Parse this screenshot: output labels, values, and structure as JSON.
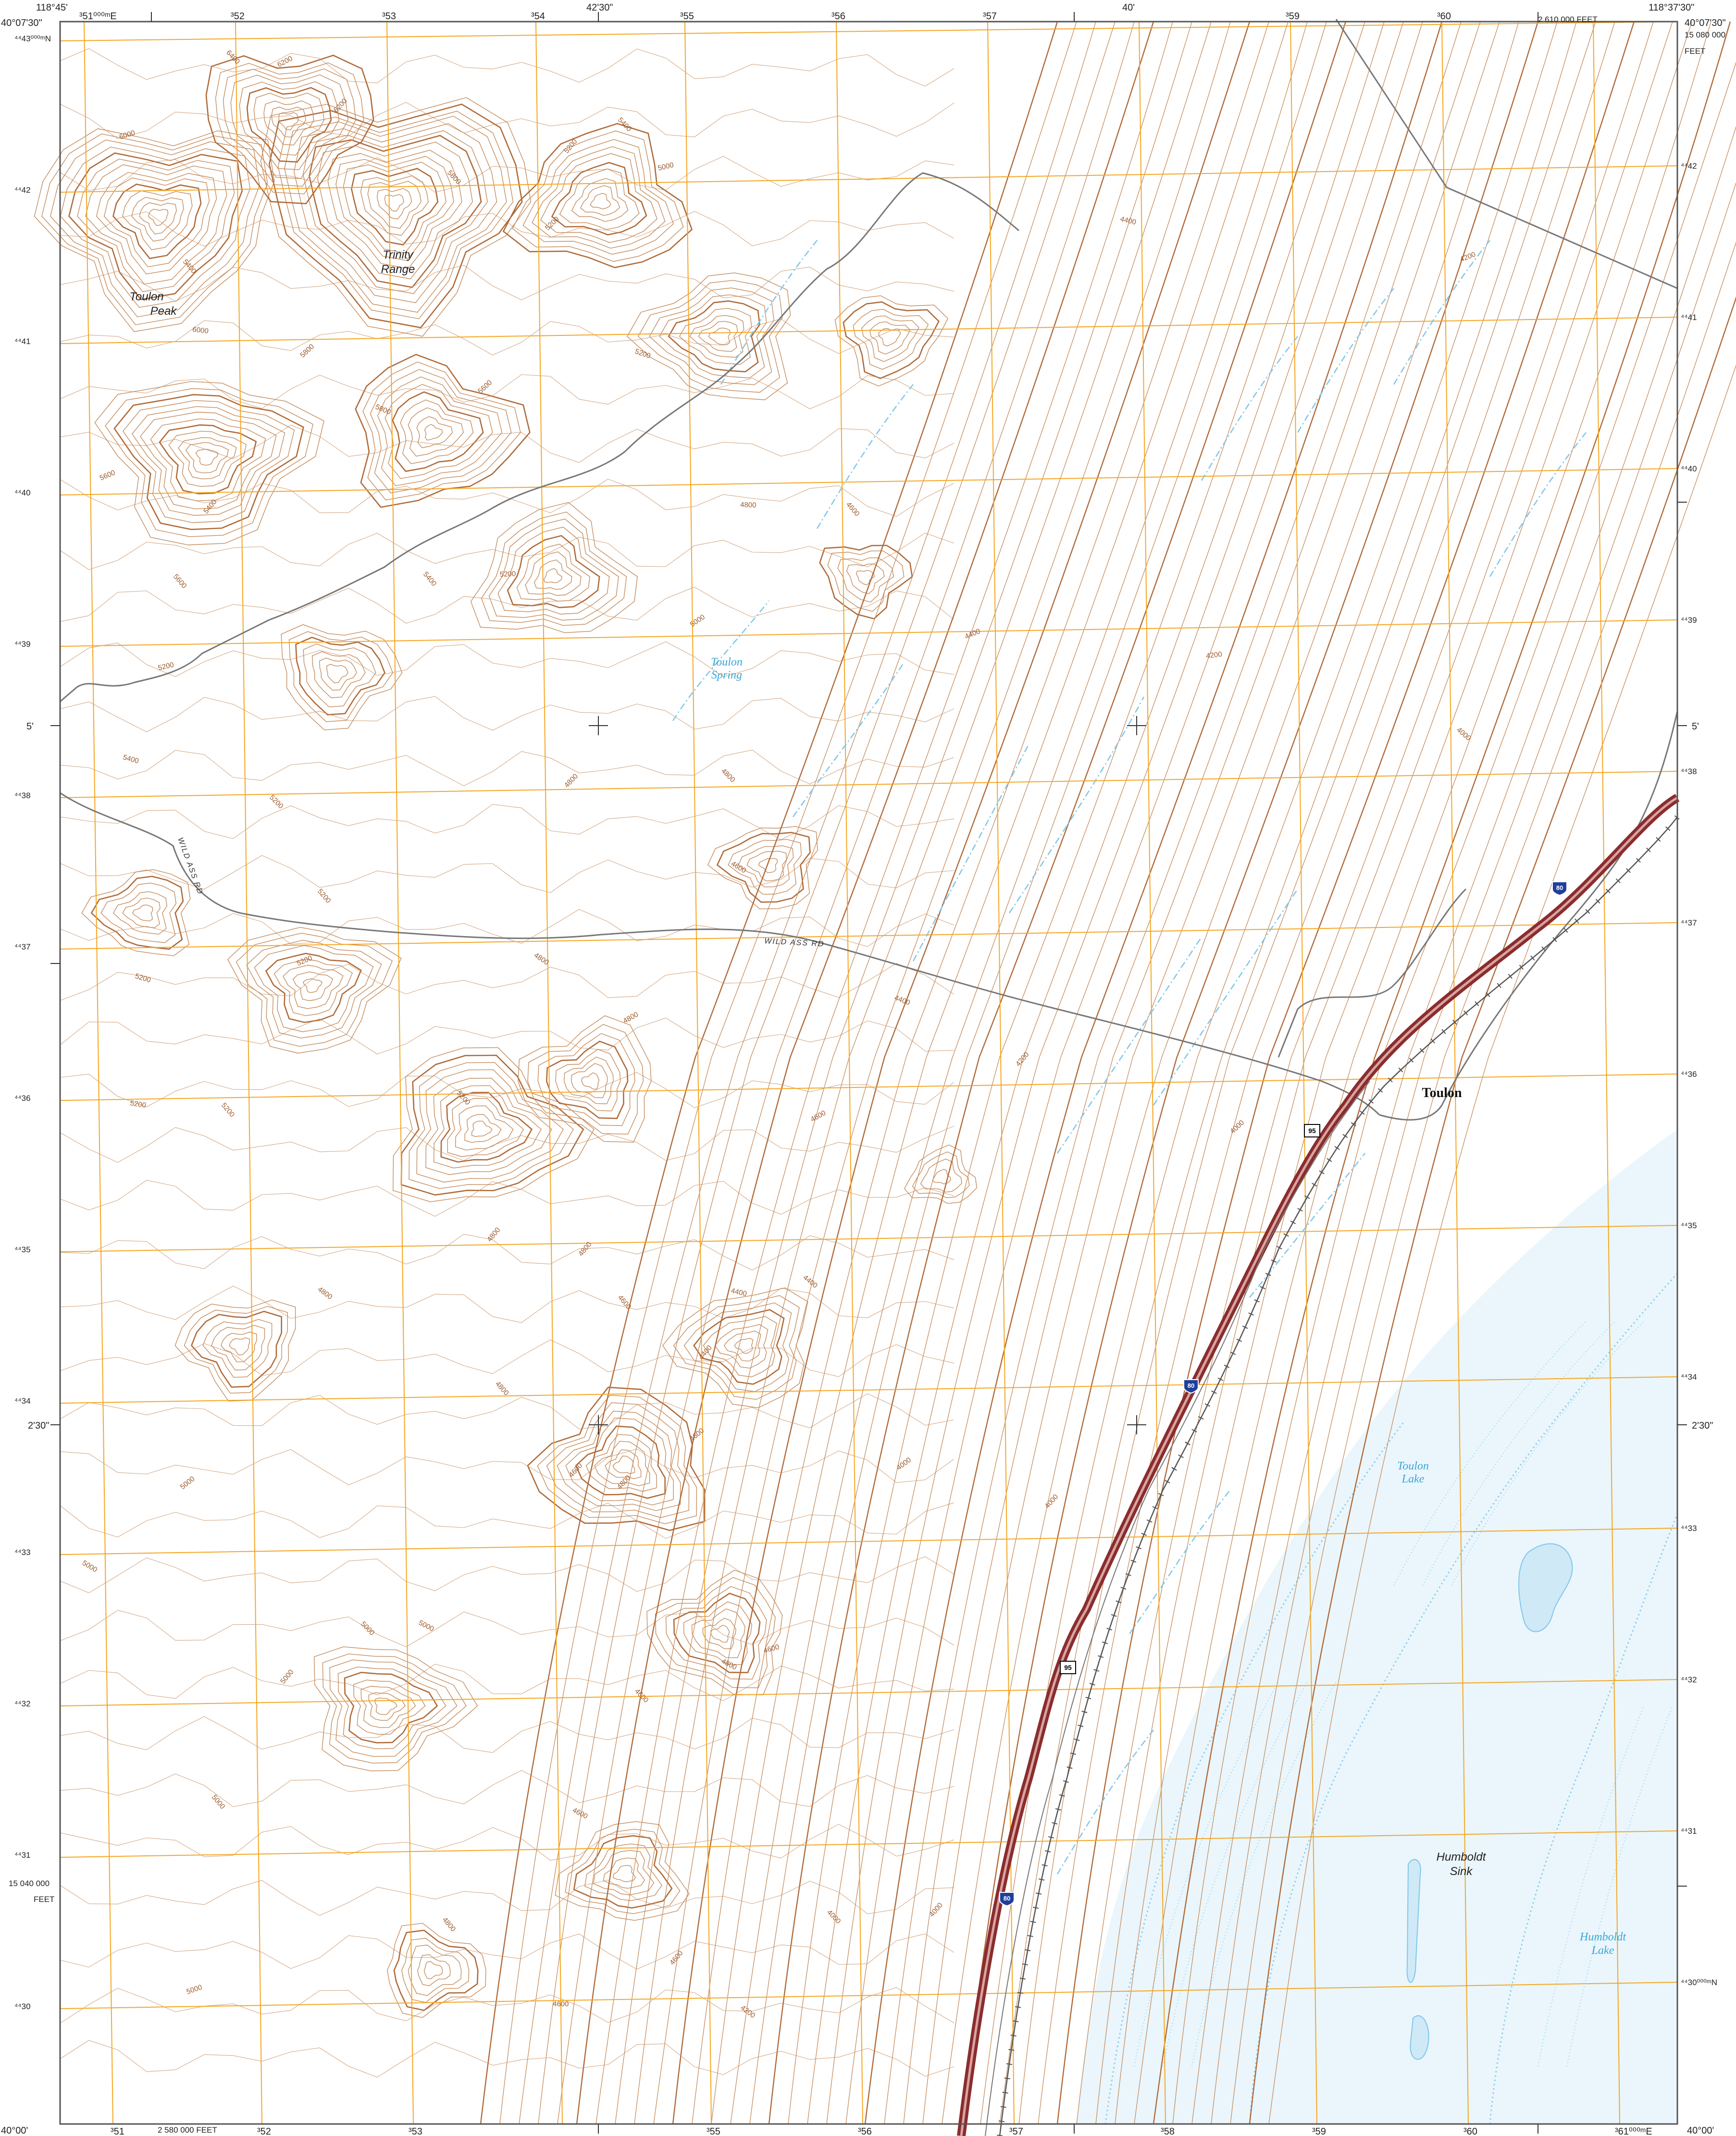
{
  "colors": {
    "contour": "#c48a5a",
    "contour_index": "#b06a38",
    "grid_utm": "#f5a623",
    "water": "#7fc6ea",
    "water_fill": "#e8f5fc",
    "interstate": "#8a2d2d",
    "road": "#777777",
    "railroad": "#555555",
    "frame": "#555555"
  },
  "corners": {
    "top_left_lon": "118°45'",
    "top_left_lat": "40°07'30\"",
    "top_right_lon": "118°37'30\"",
    "top_right_lat": "40°07'30\"",
    "bottom_left_lat": "40°00'",
    "bottom_right_lat": "40°00'",
    "top_feet": "2 610 000 FEET",
    "right_northing": "15 080 000",
    "right_feet": "FEET",
    "left_northing": "15 040 000",
    "left_feet": "FEET",
    "bottom_feet": "2 580 000 FEET",
    "top_mid": "42'30\"",
    "top_40": "40'",
    "left_5": "5'",
    "right_5": "5'",
    "left_230": "2'30\"",
    "right_230": "2'30\""
  },
  "easting_labels": {
    "top": [
      "³51⁰⁰⁰ᵐE",
      "³52",
      "³53",
      "³54",
      "³55",
      "³56",
      "³57",
      "³59",
      "³60"
    ],
    "bottom": [
      "³51",
      "³52",
      "³53",
      "³55",
      "³56",
      "³57",
      "³58",
      "³59",
      "³60",
      "³61⁰⁰⁰ᵐE"
    ]
  },
  "northing_labels": {
    "left": [
      "⁴⁴43⁰⁰⁰ᵐN",
      "⁴⁴42",
      "⁴⁴41",
      "⁴⁴40",
      "⁴⁴39",
      "⁴⁴38",
      "⁴⁴37",
      "⁴⁴36",
      "⁴⁴35",
      "⁴⁴34",
      "⁴⁴33",
      "⁴⁴32",
      "⁴⁴31",
      "⁴⁴30"
    ],
    "right": [
      "⁴⁴42",
      "⁴⁴41",
      "⁴⁴40",
      "⁴⁴39",
      "⁴⁴38",
      "⁴⁴37",
      "⁴⁴36",
      "⁴⁴35",
      "⁴⁴34",
      "⁴⁴33",
      "⁴⁴32",
      "⁴⁴31",
      "⁴⁴30⁰⁰⁰ᵐN"
    ]
  },
  "places": {
    "toulon_peak": [
      "Toulon",
      "Peak"
    ],
    "trinity_range": [
      "Trinity",
      "Range"
    ],
    "toulon_spring": [
      "Toulon",
      "Spring"
    ],
    "toulon_town": "Toulon",
    "toulon_lake": [
      "Toulon",
      "Lake"
    ],
    "humboldt_sink": [
      "Humboldt",
      "Sink"
    ],
    "humboldt_lake": [
      "Humboldt",
      "Lake"
    ]
  },
  "roads": {
    "wild_ass_rd_1": "WILD ASS RD",
    "wild_ass_rd_2": "WILD ASS RD",
    "interstate": "80",
    "us_route": "95"
  },
  "contour_labels": [
    "6400",
    "6200",
    "6000",
    "5800",
    "5600",
    "5400",
    "5200",
    "5000",
    "4800",
    "4600",
    "4400",
    "4200",
    "4000"
  ]
}
